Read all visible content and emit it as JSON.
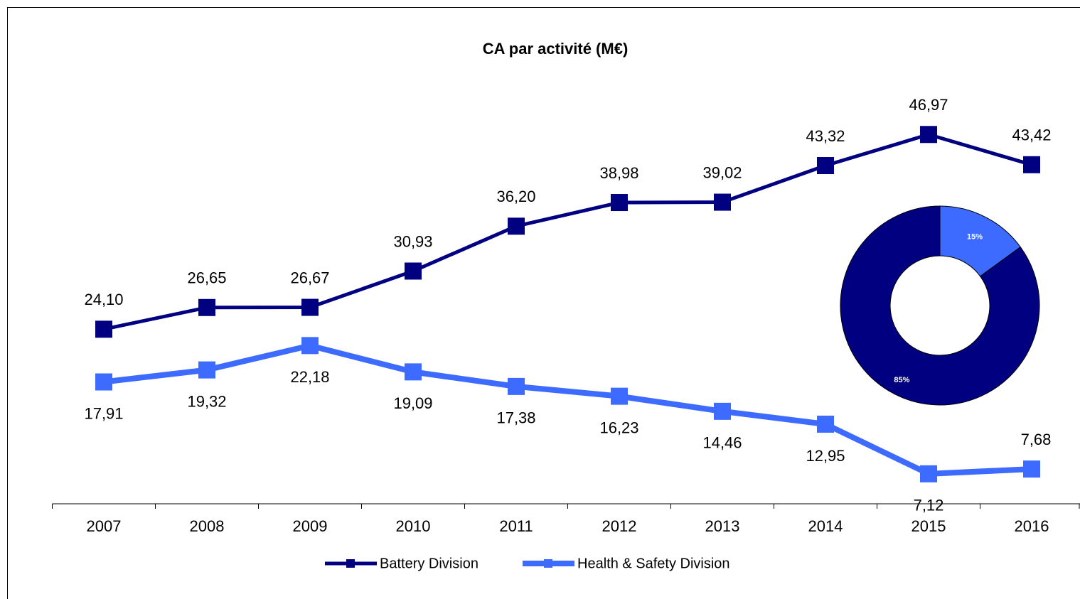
{
  "chart_data": [
    {
      "type": "line",
      "title": "CA par activité (M€)",
      "categories": [
        "2007",
        "2008",
        "2009",
        "2010",
        "2011",
        "2012",
        "2013",
        "2014",
        "2015",
        "2016"
      ],
      "series": [
        {
          "name": "Battery Division",
          "color": "#000080",
          "values": [
            24.1,
            26.65,
            26.67,
            30.93,
            36.2,
            38.98,
            39.02,
            43.32,
            46.97,
            43.42
          ],
          "value_labels": [
            "24,10",
            "26,65",
            "26,67",
            "30,93",
            "36,20",
            "38,98",
            "39,02",
            "43,32",
            "46,97",
            "43,42"
          ]
        },
        {
          "name": "Health & Safety Division",
          "color": "#3d6bff",
          "values": [
            17.91,
            19.32,
            22.18,
            19.09,
            17.38,
            16.23,
            14.46,
            12.95,
            7.12,
            7.68
          ],
          "value_labels": [
            "17,91",
            "19,32",
            "22,18",
            "19,09",
            "17,38",
            "16,23",
            "14,46",
            "12,95",
            "7,12",
            "7,68"
          ]
        }
      ],
      "ylim": [
        3.6,
        52
      ],
      "legend": "bottom"
    },
    {
      "type": "pie",
      "donut": true,
      "values": [
        15,
        85
      ],
      "value_labels": [
        "15%",
        "85%"
      ],
      "colors": [
        "#3d6bff",
        "#000080"
      ]
    }
  ]
}
